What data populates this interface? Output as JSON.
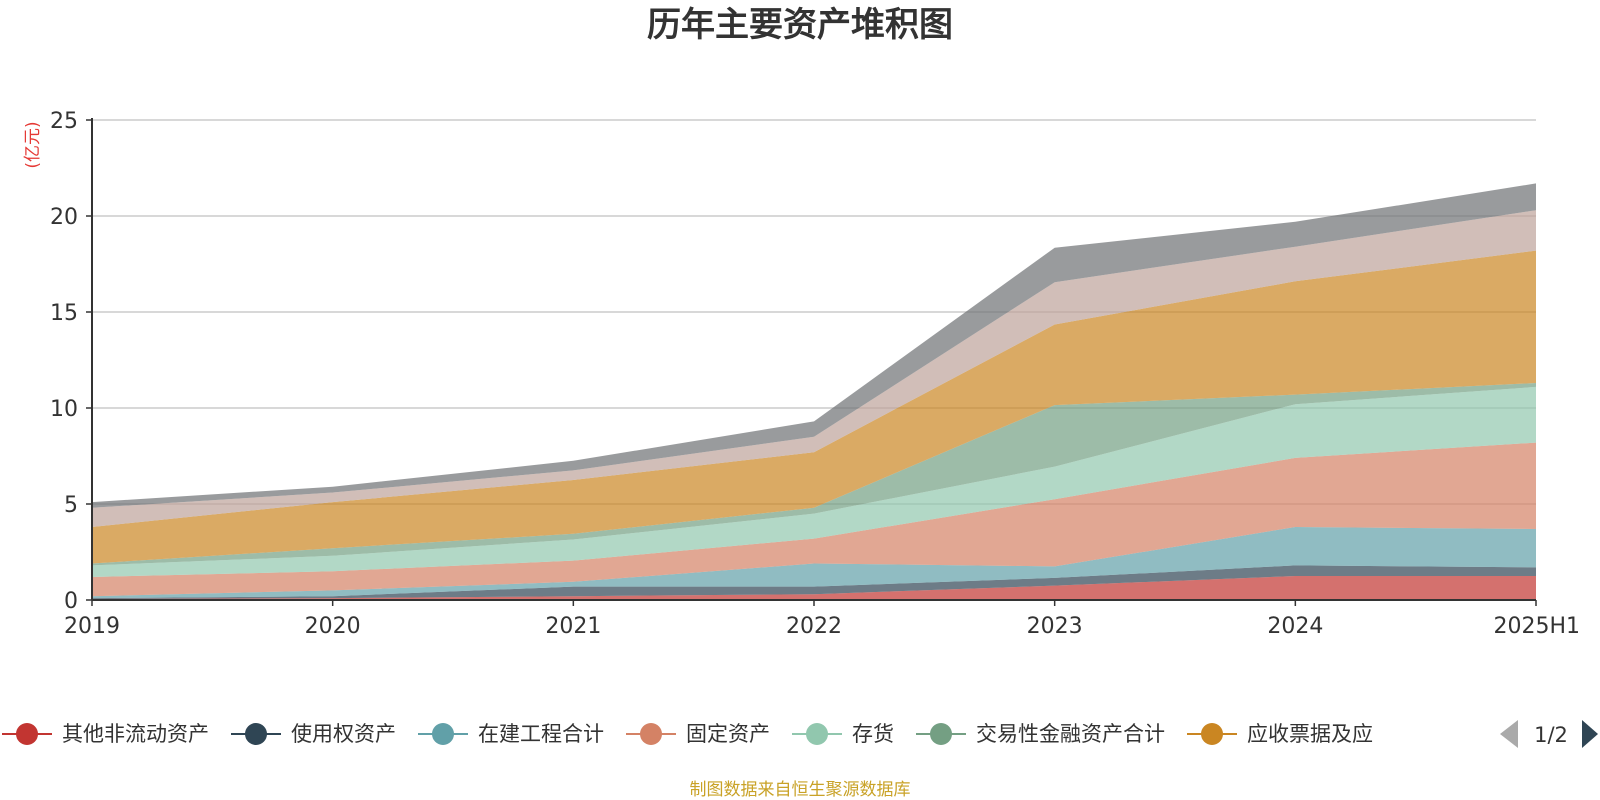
{
  "title": "历年主要资产堆积图",
  "chart_data": {
    "type": "area",
    "stacked": true,
    "title": "历年主要资产堆积图",
    "y_unit": "(亿元)",
    "ylim": [
      0,
      25
    ],
    "yticks": [
      0,
      5,
      10,
      15,
      20,
      25
    ],
    "grid": true,
    "categories": [
      "2019",
      "2020",
      "2021",
      "2022",
      "2023",
      "2024",
      "2025H1"
    ],
    "series": [
      {
        "name": "其他非流动资产",
        "color": "#c23531",
        "values": [
          0.05,
          0.1,
          0.2,
          0.3,
          0.75,
          1.25,
          1.25
        ]
      },
      {
        "name": "使用权资产",
        "color": "#2f4554",
        "values": [
          0.05,
          0.1,
          0.5,
          0.4,
          0.4,
          0.55,
          0.45
        ]
      },
      {
        "name": "在建工程合计",
        "color": "#61a0a8",
        "values": [
          0.1,
          0.3,
          0.25,
          1.2,
          0.6,
          2.0,
          2.0
        ]
      },
      {
        "name": "固定资产",
        "color": "#d48265",
        "values": [
          1.0,
          1.0,
          1.1,
          1.3,
          3.5,
          3.6,
          4.5
        ]
      },
      {
        "name": "存货",
        "color": "#91c7ae",
        "values": [
          0.6,
          0.8,
          1.1,
          1.3,
          1.7,
          2.8,
          2.9
        ]
      },
      {
        "name": "交易性金融资产合计",
        "color": "#749f83",
        "values": [
          0.1,
          0.4,
          0.3,
          0.3,
          3.2,
          0.5,
          0.2
        ]
      },
      {
        "name": "应收票据及应",
        "color": "#ca8622",
        "values": [
          1.9,
          2.4,
          2.8,
          2.9,
          4.2,
          5.9,
          6.9
        ]
      },
      {
        "name": "",
        "color": "#bda29a",
        "values": [
          1.0,
          0.5,
          0.5,
          0.8,
          2.2,
          1.8,
          2.1
        ]
      },
      {
        "name": "",
        "color": "#6e7074",
        "values": [
          0.3,
          0.3,
          0.5,
          0.8,
          1.8,
          1.3,
          1.4
        ]
      }
    ],
    "legend": {
      "position": "bottom",
      "visible_items": [
        "其他非流动资产",
        "使用权资产",
        "在建工程合计",
        "固定资产",
        "存货",
        "交易性金融资产合计",
        "应收票据及应"
      ],
      "page": "1/2"
    }
  },
  "footer": "制图数据来自恒生聚源数据库"
}
